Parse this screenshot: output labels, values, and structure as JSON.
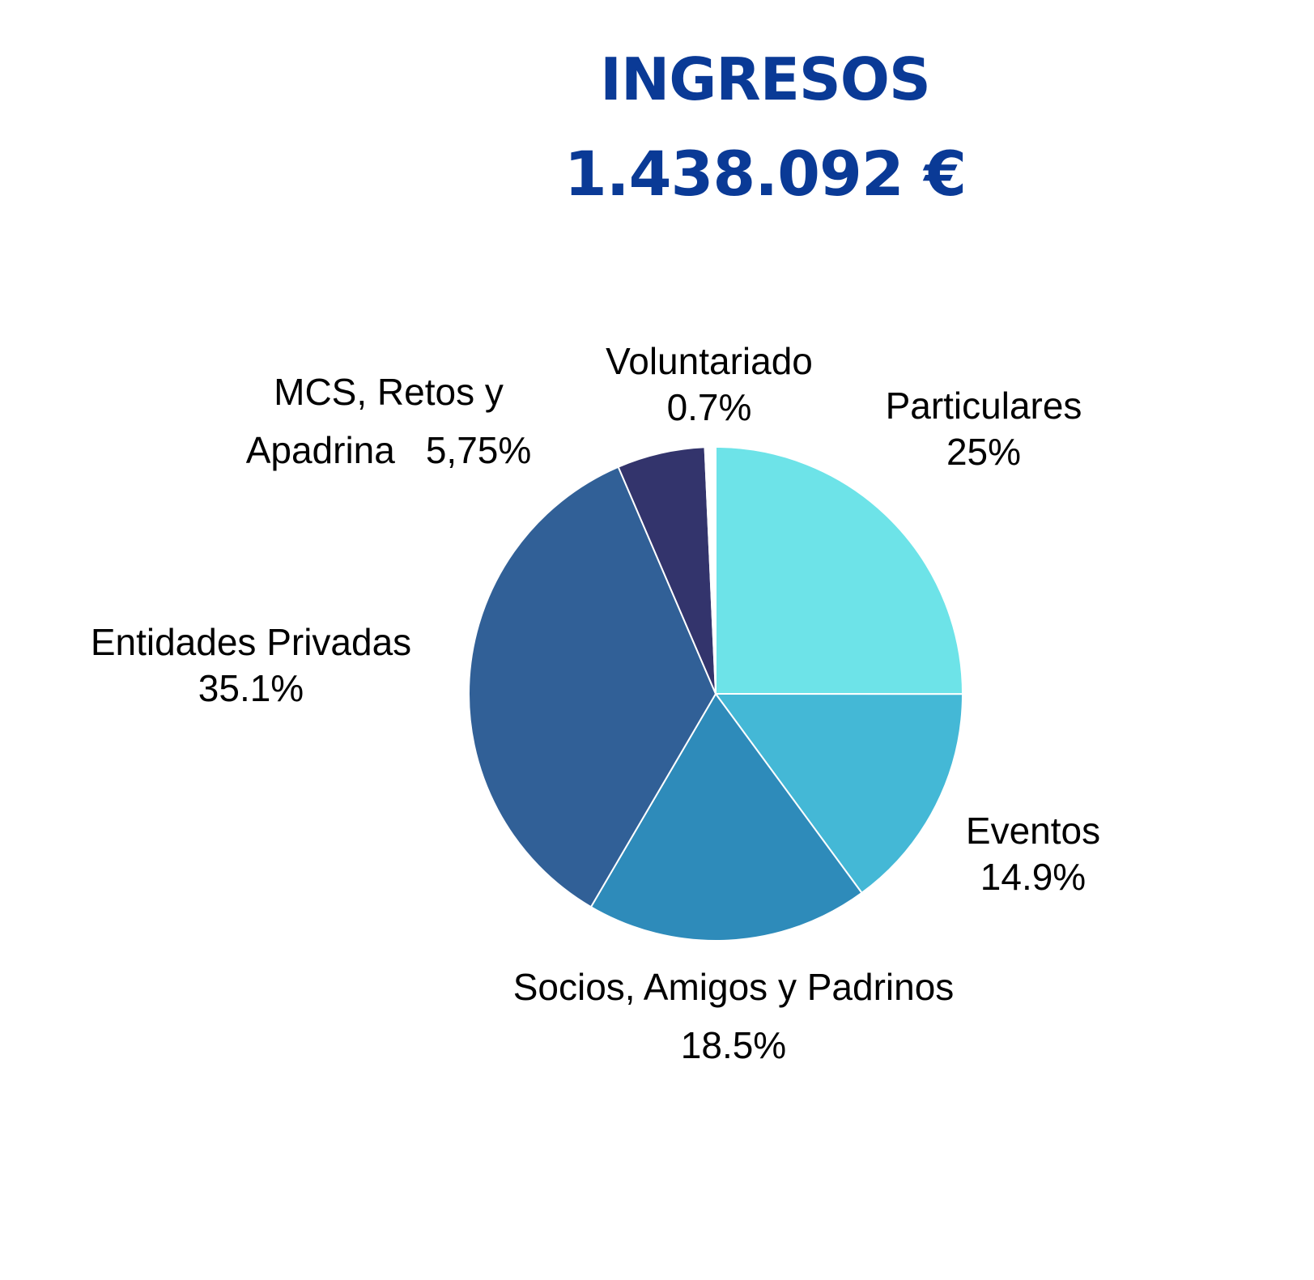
{
  "header": {
    "title": "INGRESOS",
    "amount": "1.438.092 €"
  },
  "chart_data": {
    "type": "pie",
    "title": "INGRESOS",
    "subtitle": "1.438.092 €",
    "start_angle_deg": -90,
    "direction": "clockwise",
    "slices": [
      {
        "label": "Particulares",
        "value_label": "25%",
        "value": 25.0,
        "color": "#6de3e8"
      },
      {
        "label": "Eventos",
        "value_label": "14.9%",
        "value": 14.9,
        "color": "#44b8d6"
      },
      {
        "label": "Socios, Amigos y Padrinos",
        "value_label": "18.5%",
        "value": 18.5,
        "color": "#2e8bba"
      },
      {
        "label": "Entidades Privadas",
        "value_label": "35.1%",
        "value": 35.1,
        "color": "#316097"
      },
      {
        "label": "MCS, Retos y Apadrina",
        "value_label": "5,75%",
        "value": 5.75,
        "color": "#33346c"
      },
      {
        "label": "Voluntariado",
        "value_label": "0.7%",
        "value": 0.7,
        "color": "#ffffff"
      }
    ]
  }
}
